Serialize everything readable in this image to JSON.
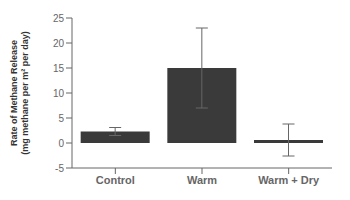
{
  "chart_data": {
    "type": "bar",
    "categories": [
      "Control",
      "Warm",
      "Warm + Dry"
    ],
    "values": [
      2.3,
      15.0,
      0.6
    ],
    "errors": [
      0.8,
      8.0,
      3.2
    ],
    "color": "#3a3a3a",
    "ylim": [
      -5,
      25
    ],
    "yticks": [
      -5,
      0,
      5,
      10,
      15,
      20,
      25
    ],
    "ylabel": "Rate of Methane Release\n(mg methane per m² per day)",
    "grid": false
  }
}
